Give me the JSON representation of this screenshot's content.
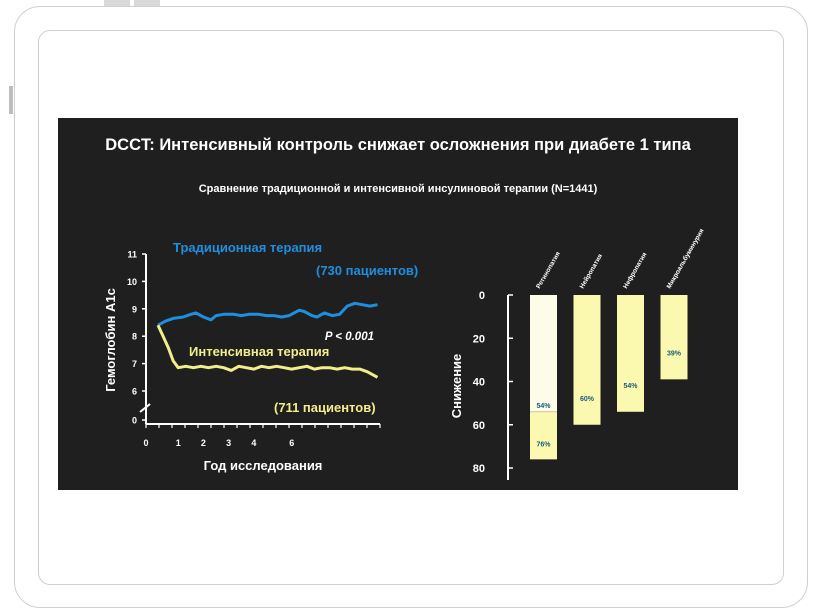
{
  "slide": {
    "title": "DCCT: Интенсивный контроль снижает осложнения при диабете 1 типа",
    "subtitle": "Сравнение традиционной и интенсивной инсулиновой терапии (N=1441)"
  },
  "colors": {
    "background": "#1f1f1f",
    "traditional": "#1e8fe0",
    "intensive": "#f2ee8a",
    "text": "#ffffff"
  },
  "chart_data": [
    {
      "type": "line",
      "xlabel": "Год исследования",
      "ylabel": "Гемоглобин A1c",
      "x_tick_labels": [
        "0",
        "1",
        "2",
        "3",
        "4",
        "6"
      ],
      "y_tick_labels": [
        "0",
        "6",
        "7",
        "8",
        "9",
        "10",
        "11"
      ],
      "ylim": [
        6,
        11
      ],
      "xlim": [
        0,
        9
      ],
      "axis_break": true,
      "annotation": "P < 0.001",
      "series": [
        {
          "name": "Традиционная терапия",
          "count_label": "(730 пациентов)",
          "color": "#1e8fe0",
          "x": [
            0.2,
            0.5,
            0.8,
            1.2,
            1.5,
            1.7,
            2.0,
            2.3,
            2.5,
            2.8,
            3.2,
            3.5,
            3.8,
            4.2,
            4.5,
            4.8,
            5.1,
            5.4,
            5.8,
            6.0,
            6.3,
            6.5,
            6.8,
            7.1,
            7.4,
            7.7,
            8.0,
            8.3,
            8.6,
            8.9
          ],
          "values": [
            8.4,
            8.55,
            8.65,
            8.7,
            8.8,
            8.85,
            8.7,
            8.6,
            8.75,
            8.8,
            8.8,
            8.75,
            8.8,
            8.8,
            8.75,
            8.75,
            8.7,
            8.75,
            8.95,
            8.9,
            8.75,
            8.7,
            8.85,
            8.75,
            8.8,
            9.1,
            9.2,
            9.15,
            9.1,
            9.15
          ]
        },
        {
          "name": "Интенсивная терапия",
          "count_label": "(711 пациентов)",
          "color": "#f2ee8a",
          "x": [
            0.2,
            0.4,
            0.6,
            0.8,
            1.0,
            1.3,
            1.6,
            1.9,
            2.2,
            2.5,
            2.8,
            3.1,
            3.4,
            3.7,
            4.0,
            4.3,
            4.6,
            4.9,
            5.2,
            5.5,
            5.8,
            6.1,
            6.4,
            6.7,
            7.0,
            7.3,
            7.6,
            7.9,
            8.2,
            8.5,
            8.9
          ],
          "values": [
            8.4,
            8.0,
            7.6,
            7.1,
            6.85,
            6.9,
            6.85,
            6.9,
            6.85,
            6.9,
            6.85,
            6.75,
            6.9,
            6.85,
            6.8,
            6.9,
            6.85,
            6.9,
            6.85,
            6.8,
            6.85,
            6.9,
            6.8,
            6.85,
            6.85,
            6.8,
            6.85,
            6.8,
            6.8,
            6.7,
            6.5
          ]
        }
      ]
    },
    {
      "type": "bar",
      "ylabel": "Снижение",
      "y_tick_labels": [
        "0",
        "20",
        "40",
        "60",
        "80"
      ],
      "ylim": [
        0,
        80
      ],
      "y_inverted": true,
      "categories": [
        "Ретинопатия",
        "Нейропатия",
        "Нефропатия",
        "Микроальбуминурия"
      ],
      "values": [
        76,
        60,
        54,
        39
      ],
      "value_labels": [
        "76%",
        "60%",
        "54%",
        "39%"
      ],
      "secondary_values": [
        54,
        null,
        null,
        null
      ],
      "secondary_labels": [
        "54%",
        "",
        "",
        ""
      ],
      "bar_color": "#fbf9b0",
      "secondary_color": "#fdfce8"
    }
  ]
}
